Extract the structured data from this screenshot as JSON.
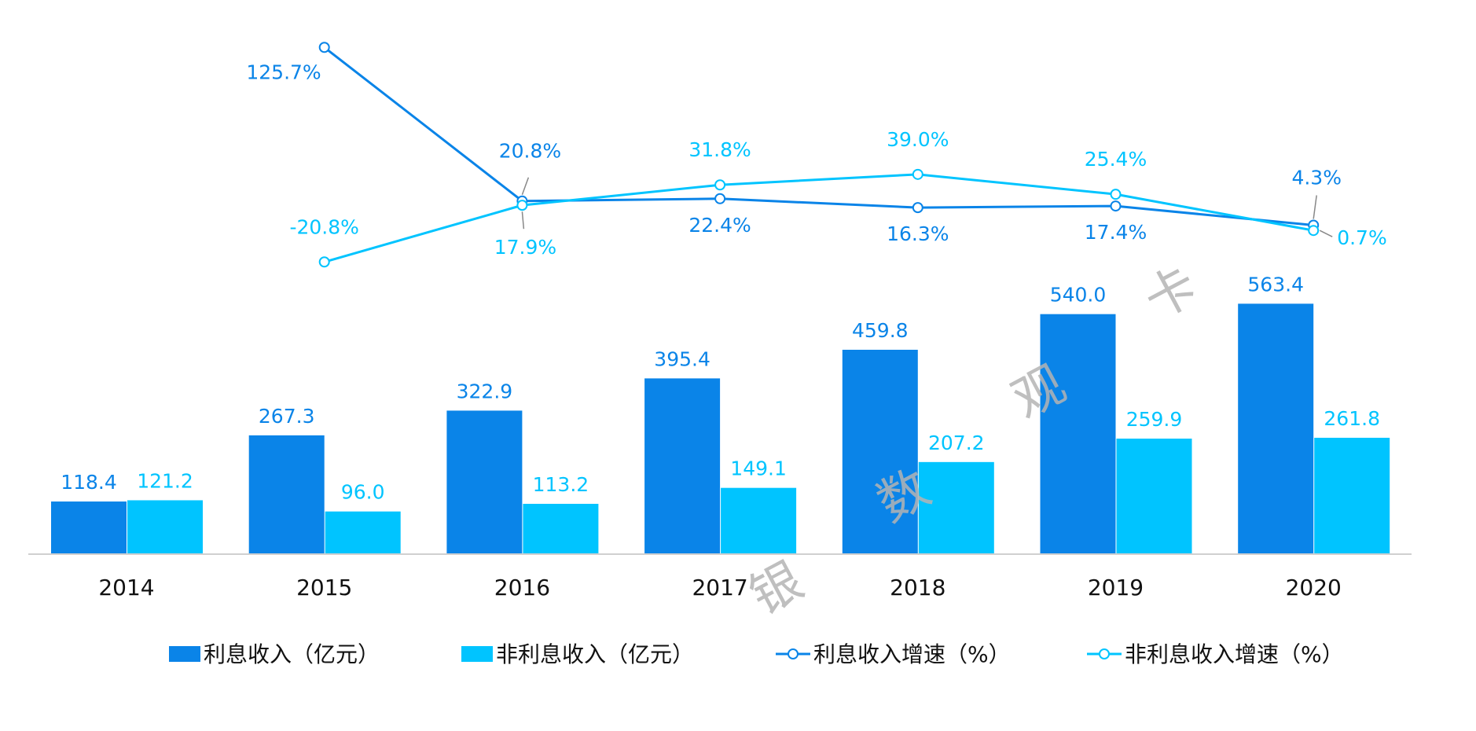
{
  "chart_data": {
    "type": "bar",
    "categories": [
      "2014",
      "2015",
      "2016",
      "2017",
      "2018",
      "2019",
      "2020"
    ],
    "series": [
      {
        "name": "利息收入（亿元）",
        "kind": "bar",
        "color": "#0a84e8",
        "values": [
          118.4,
          267.3,
          322.9,
          395.4,
          459.8,
          540.0,
          563.4
        ],
        "labels": [
          "118.4",
          "267.3",
          "322.9",
          "395.4",
          "459.8",
          "540.0",
          "563.4"
        ]
      },
      {
        "name": "非利息收入（亿元）",
        "kind": "bar",
        "color": "#00c4ff",
        "values": [
          121.2,
          96.0,
          113.2,
          149.1,
          207.2,
          259.9,
          261.8
        ],
        "labels": [
          "121.2",
          "96.0",
          "113.2",
          "149.1",
          "207.2",
          "259.9",
          "261.8"
        ]
      },
      {
        "name": "利息收入增速（%）",
        "kind": "line",
        "color": "#0a84e8",
        "values": [
          null,
          125.7,
          20.8,
          22.4,
          16.3,
          17.4,
          4.3
        ],
        "labels": [
          "",
          "125.7%",
          "20.8%",
          "22.4%",
          "16.3%",
          "17.4%",
          "4.3%"
        ]
      },
      {
        "name": "非利息收入增速（%）",
        "kind": "line",
        "color": "#00c4ff",
        "values": [
          null,
          -20.8,
          17.9,
          31.8,
          39.0,
          25.4,
          0.7
        ],
        "labels": [
          "",
          "-20.8%",
          "17.9%",
          "31.8%",
          "39.0%",
          "25.4%",
          "0.7%"
        ]
      }
    ],
    "legend_position": "bottom",
    "grid": false,
    "watermark": [
      "银",
      "数",
      "观",
      "卡"
    ]
  }
}
